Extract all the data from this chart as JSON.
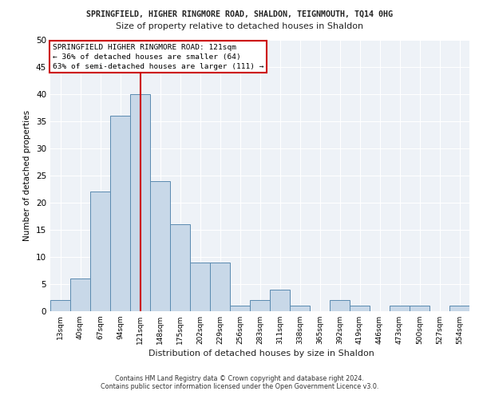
{
  "title1": "SPRINGFIELD, HIGHER RINGMORE ROAD, SHALDON, TEIGNMOUTH, TQ14 0HG",
  "title2": "Size of property relative to detached houses in Shaldon",
  "xlabel": "Distribution of detached houses by size in Shaldon",
  "ylabel": "Number of detached properties",
  "footnote1": "Contains HM Land Registry data © Crown copyright and database right 2024.",
  "footnote2": "Contains public sector information licensed under the Open Government Licence v3.0.",
  "categories": [
    "13sqm",
    "40sqm",
    "67sqm",
    "94sqm",
    "121sqm",
    "148sqm",
    "175sqm",
    "202sqm",
    "229sqm",
    "256sqm",
    "283sqm",
    "311sqm",
    "338sqm",
    "365sqm",
    "392sqm",
    "419sqm",
    "446sqm",
    "473sqm",
    "500sqm",
    "527sqm",
    "554sqm"
  ],
  "values": [
    2,
    6,
    22,
    36,
    40,
    24,
    16,
    9,
    9,
    1,
    2,
    4,
    1,
    0,
    2,
    1,
    0,
    1,
    1,
    0,
    1
  ],
  "bar_color": "#c8d8e8",
  "bar_edge_color": "#5a8ab0",
  "ylim": [
    0,
    50
  ],
  "yticks": [
    0,
    5,
    10,
    15,
    20,
    25,
    30,
    35,
    40,
    45,
    50
  ],
  "vline_x": 4.0,
  "vline_color": "#cc0000",
  "annotation_box_text": "SPRINGFIELD HIGHER RINGMORE ROAD: 121sqm\n← 36% of detached houses are smaller (64)\n63% of semi-detached houses are larger (111) →",
  "annotation_box_color": "#ffffff",
  "annotation_box_edge": "#cc0000",
  "bg_color": "#eef2f7",
  "grid_color": "#ffffff"
}
